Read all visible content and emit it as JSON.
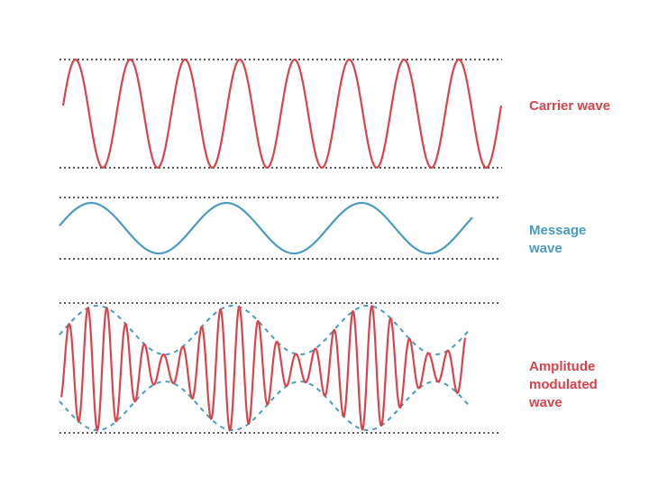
{
  "colors": {
    "carrier": "#d9434b",
    "message": "#4a9bbf",
    "envelope": "#4a9bbf",
    "guide": "#222222",
    "carrier_label": "#d9434b",
    "message_label": "#4a9bbf",
    "am_label": "#d9434b"
  },
  "labels": {
    "carrier": "Carrier wave",
    "message": "Message\nwave",
    "am": "Amplitude\nmodulated\nwave"
  },
  "waves": {
    "carrier_cycles": 8,
    "message_cycles": 3,
    "modulation_index": 0.8
  }
}
